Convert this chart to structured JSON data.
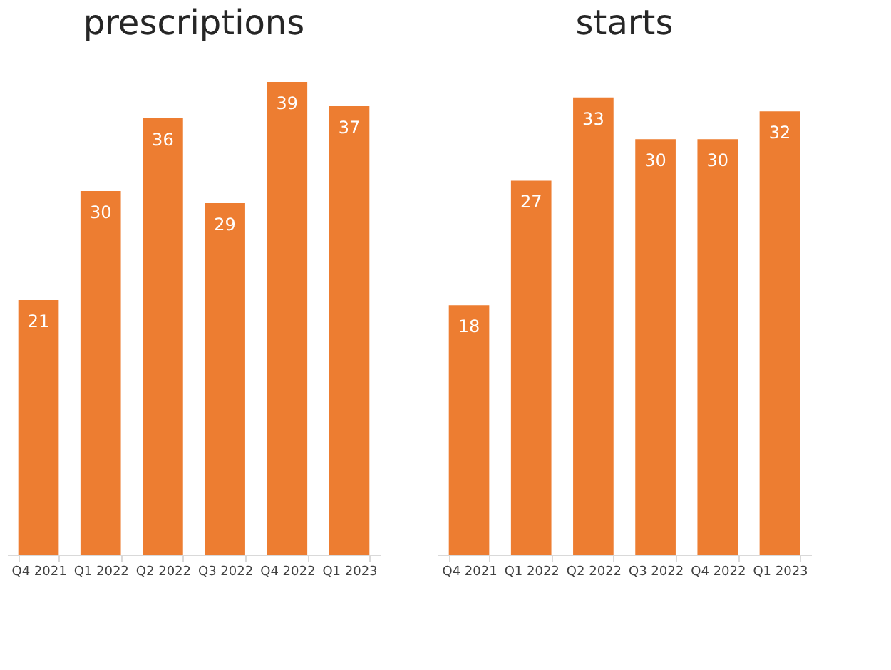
{
  "chart_data": [
    {
      "type": "bar",
      "title": "prescriptions",
      "categories": [
        "Q4 2021",
        "Q1 2022",
        "Q2 2022",
        "Q3 2022",
        "Q4 2022",
        "Q1 2023"
      ],
      "values": [
        21,
        30,
        36,
        29,
        39,
        37
      ],
      "color": "#ed7d31",
      "data_labels": true,
      "tick_labels": "x"
    },
    {
      "type": "bar",
      "title": "starts",
      "categories": [
        "Q4 2021",
        "Q1 2022",
        "Q2 2022",
        "Q3 2022",
        "Q4 2022",
        "Q1 2023"
      ],
      "values": [
        18,
        27,
        33,
        30,
        30,
        32
      ],
      "color": "#ed7d31",
      "data_labels": true,
      "tick_labels": "x"
    }
  ]
}
